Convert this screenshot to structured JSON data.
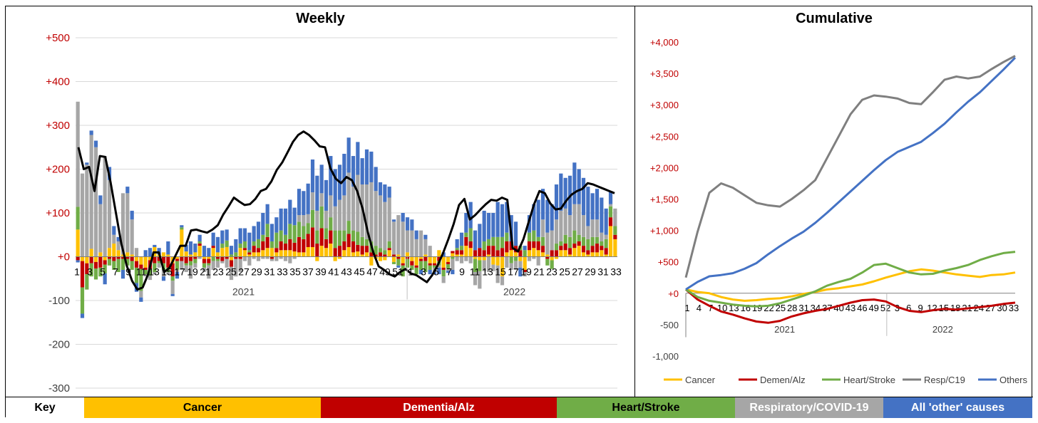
{
  "colors": {
    "cancer": "#FFC000",
    "dementia": "#C00000",
    "heart": "#70AD47",
    "resp": "#A6A6A6",
    "resp_line": "#7F7F7F",
    "others": "#4472C4",
    "axis_label": "#C00000",
    "neg_label": "#404040",
    "grid": "#D9D9D9"
  },
  "chart_data": [
    {
      "type": "bar",
      "title": "Weekly",
      "stacked": true,
      "ylim": [
        -300,
        500
      ],
      "yticks": [
        -300,
        -200,
        -100,
        0,
        100,
        200,
        300,
        400,
        500
      ],
      "ytick_labels": [
        "-300",
        "-200",
        "-100",
        "+0",
        "+100",
        "+200",
        "+300",
        "+400",
        "+500"
      ],
      "grid": true,
      "x_tick_labels": [
        "1",
        "3",
        "5",
        "7",
        "9",
        "11",
        "13",
        "15",
        "17",
        "19",
        "21",
        "23",
        "25",
        "27",
        "29",
        "31",
        "33",
        "35",
        "37",
        "39",
        "41",
        "43",
        "45",
        "47",
        "49",
        "51",
        "1",
        "3",
        "5",
        "7",
        "9",
        "11",
        "13",
        "15",
        "17",
        "19",
        "21",
        "23",
        "25",
        "27",
        "29",
        "31",
        "33"
      ],
      "year_labels": [
        "2021",
        "2022"
      ],
      "series": [
        {
          "key": "cancer",
          "values": [
            62,
            -10,
            -15,
            18,
            -12,
            10,
            -8,
            20,
            30,
            15,
            5,
            10,
            5,
            -10,
            -18,
            -25,
            -8,
            22,
            5,
            10,
            5,
            -15,
            -5,
            62,
            12,
            5,
            10,
            25,
            -5,
            -5,
            20,
            10,
            20,
            22,
            -8,
            0,
            20,
            15,
            5,
            10,
            10,
            15,
            20,
            20,
            10,
            15,
            15,
            15,
            12,
            10,
            10,
            22,
            22,
            -10,
            25,
            20,
            30,
            -10,
            -5,
            15,
            22,
            10,
            12,
            5,
            10,
            -20,
            -5,
            -10,
            -8,
            15,
            -12,
            5,
            -15,
            10,
            -10,
            -20,
            -5,
            5,
            -15,
            -15,
            15,
            -25,
            -12,
            8,
            5,
            5,
            25,
            20,
            -5,
            -8,
            -8,
            5,
            -18,
            -20,
            -45,
            10,
            15,
            10,
            -10,
            -30,
            15,
            20,
            15,
            10,
            5,
            -8,
            -5,
            15,
            15,
            5,
            20,
            25,
            10,
            5,
            10,
            10,
            15,
            5,
            70,
            40
          ]
        },
        {
          "key": "dementia",
          "values": [
            -8,
            -60,
            -25,
            -15,
            -15,
            -25,
            -10,
            -5,
            -10,
            -5,
            -5,
            -5,
            -10,
            -15,
            -10,
            -5,
            -20,
            -15,
            -10,
            -15,
            -25,
            -30,
            -5,
            -10,
            -15,
            -10,
            -5,
            5,
            -10,
            -10,
            5,
            -5,
            -10,
            -5,
            -15,
            -5,
            -5,
            5,
            5,
            15,
            10,
            20,
            25,
            -5,
            10,
            20,
            15,
            25,
            20,
            35,
            30,
            30,
            45,
            30,
            40,
            20,
            30,
            20,
            25,
            20,
            30,
            25,
            15,
            20,
            15,
            10,
            5,
            10,
            5,
            5,
            5,
            -5,
            -5,
            -5,
            -10,
            -5,
            -5,
            -10,
            -5,
            -5,
            -10,
            -5,
            -5,
            5,
            10,
            10,
            20,
            15,
            15,
            20,
            15,
            20,
            25,
            15,
            20,
            25,
            20,
            15,
            15,
            -5,
            20,
            15,
            20,
            15,
            -5,
            15,
            15,
            10,
            15,
            15,
            10,
            10,
            15,
            10,
            15,
            20,
            10,
            15,
            20,
            10,
            15
          ]
        },
        {
          "key": "heart",
          "values": [
            52,
            -60,
            -35,
            -30,
            -25,
            -20,
            -20,
            -15,
            -20,
            -30,
            -25,
            -15,
            -20,
            -35,
            -50,
            -10,
            -15,
            -20,
            -5,
            -15,
            -10,
            -10,
            -20,
            5,
            -5,
            -10,
            -10,
            5,
            -10,
            -5,
            -10,
            -5,
            10,
            15,
            5,
            10,
            10,
            15,
            5,
            10,
            20,
            15,
            30,
            15,
            35,
            25,
            20,
            35,
            40,
            35,
            30,
            25,
            40,
            30,
            50,
            25,
            30,
            40,
            35,
            25,
            30,
            25,
            30,
            20,
            15,
            25,
            20,
            10,
            10,
            15,
            -5,
            -15,
            -25,
            -20,
            -10,
            -15,
            -20,
            -25,
            -10,
            -5,
            -10,
            -15,
            -10,
            -5,
            5,
            10,
            10,
            30,
            -30,
            -25,
            20,
            15,
            20,
            30,
            25,
            20,
            -15,
            -10,
            10,
            15,
            20,
            25,
            10,
            20,
            -15,
            -20,
            15,
            10,
            20,
            25,
            30,
            15,
            20,
            25,
            20,
            15,
            10,
            20,
            25,
            20,
            10
          ]
        },
        {
          "key": "resp",
          "values": [
            240,
            190,
            210,
            260,
            250,
            110,
            230,
            155,
            20,
            20,
            140,
            135,
            80,
            20,
            -15,
            -5,
            -10,
            -5,
            -10,
            -15,
            -5,
            -30,
            -5,
            -20,
            -15,
            -30,
            -10,
            -5,
            -10,
            -30,
            -20,
            -15,
            -5,
            -20,
            -30,
            -40,
            -30,
            -10,
            -20,
            -5,
            -10,
            -5,
            -5,
            -5,
            -10,
            -5,
            -10,
            -15,
            -5,
            15,
            25,
            20,
            40,
            45,
            30,
            40,
            50,
            55,
            70,
            80,
            110,
            100,
            130,
            120,
            125,
            135,
            125,
            120,
            110,
            100,
            75,
            90,
            80,
            50,
            60,
            40,
            60,
            35,
            25,
            -10,
            -5,
            -15,
            -5,
            -25,
            -10,
            -15,
            -10,
            -15,
            -30,
            -40,
            -25,
            -35,
            -15,
            -40,
            -20,
            -25,
            -15,
            -20,
            -15,
            -10,
            -10,
            -5,
            -20,
            40,
            50,
            45,
            55,
            70,
            60,
            50,
            60,
            70,
            50,
            30,
            40,
            40,
            20,
            10,
            5,
            40,
            60
          ]
        },
        {
          "key": "others",
          "values": [
            -5,
            -10,
            5,
            10,
            15,
            20,
            -25,
            30,
            20,
            10,
            -20,
            15,
            20,
            -20,
            -10,
            15,
            20,
            5,
            15,
            -10,
            30,
            -5,
            -15,
            5,
            15,
            30,
            20,
            15,
            25,
            20,
            30,
            35,
            30,
            25,
            20,
            30,
            35,
            30,
            40,
            35,
            40,
            50,
            45,
            40,
            35,
            50,
            60,
            55,
            40,
            60,
            55,
            70,
            75,
            80,
            65,
            70,
            90,
            85,
            80,
            95,
            80,
            70,
            75,
            60,
            80,
            70,
            55,
            30,
            40,
            25,
            5,
            -5,
            20,
            30,
            25,
            20,
            -10,
            10,
            -10,
            -5,
            -15,
            10,
            -5,
            -10,
            20,
            30,
            45,
            60,
            45,
            55,
            70,
            60,
            55,
            80,
            75,
            70,
            60,
            55,
            -20,
            10,
            40,
            60,
            85,
            70,
            75,
            60,
            80,
            85,
            70,
            90,
            95,
            80,
            85,
            90,
            60,
            70,
            80,
            60,
            30
          ]
        }
      ],
      "trend": [
        250,
        200,
        205,
        150,
        230,
        228,
        170,
        100,
        30,
        -20,
        -55,
        -75,
        -70,
        -40,
        10,
        10,
        -35,
        -25,
        0,
        25,
        25,
        60,
        62,
        58,
        55,
        62,
        72,
        96,
        115,
        135,
        126,
        118,
        120,
        132,
        150,
        155,
        172,
        198,
        215,
        238,
        262,
        278,
        286,
        278,
        266,
        252,
        250,
        202,
        178,
        168,
        182,
        175,
        150,
        110,
        55,
        10,
        -22,
        -30,
        -40,
        -45,
        -35,
        -28,
        -38,
        -42,
        -50,
        -58,
        -42,
        -20,
        8,
        40,
        75,
        118,
        132,
        85,
        95,
        108,
        120,
        130,
        128,
        135,
        130,
        20,
        12,
        40,
        80,
        120,
        150,
        145,
        122,
        108,
        110,
        128,
        142,
        150,
        155,
        168,
        165,
        160,
        155,
        150,
        145
      ]
    },
    {
      "type": "line",
      "title": "Cumulative",
      "ylim": [
        -1000,
        4000
      ],
      "yticks": [
        -1000,
        -500,
        0,
        500,
        1000,
        1500,
        2000,
        2500,
        3000,
        3500,
        4000
      ],
      "ytick_labels": [
        "-1,000",
        "-500",
        "+0",
        "+500",
        "+1,000",
        "+1,500",
        "+2,000",
        "+2,500",
        "+3,000",
        "+3,500",
        "+4,000"
      ],
      "x_tick_labels": [
        "1",
        "4",
        "7",
        "10",
        "13",
        "16",
        "19",
        "22",
        "25",
        "28",
        "31",
        "34",
        "37",
        "40",
        "43",
        "46",
        "49",
        "52",
        "3",
        "6",
        "9",
        "12",
        "15",
        "18",
        "21",
        "24",
        "27",
        "30",
        "33"
      ],
      "year_labels": [
        "2021",
        "2022"
      ],
      "legend_position": "bottom",
      "series": [
        {
          "key": "cancer",
          "name": "Cancer",
          "values": [
            60,
            20,
            0,
            -60,
            -100,
            -120,
            -110,
            -90,
            -80,
            -50,
            -10,
            20,
            60,
            80,
            110,
            140,
            190,
            250,
            300,
            350,
            380,
            360,
            330,
            300,
            280,
            260,
            290,
            300,
            330
          ]
        },
        {
          "key": "dementia",
          "name": "Demen/Alz",
          "values": [
            60,
            -100,
            -200,
            -290,
            -340,
            -400,
            -450,
            -470,
            -440,
            -370,
            -320,
            -280,
            -250,
            -200,
            -150,
            -110,
            -100,
            -130,
            -220,
            -280,
            -300,
            -270,
            -250,
            -260,
            -240,
            -220,
            -200,
            -170,
            -150
          ]
        },
        {
          "key": "heart",
          "name": "Heart/Stroke",
          "values": [
            60,
            -60,
            -120,
            -150,
            -180,
            -200,
            -210,
            -200,
            -160,
            -100,
            -40,
            30,
            120,
            180,
            230,
            330,
            450,
            470,
            400,
            330,
            300,
            310,
            360,
            400,
            450,
            530,
            590,
            640,
            660
          ]
        },
        {
          "key": "resp",
          "name": "Resp/C19",
          "values": [
            250,
            980,
            1600,
            1750,
            1680,
            1560,
            1440,
            1400,
            1380,
            1500,
            1640,
            1800,
            2150,
            2500,
            2850,
            3080,
            3150,
            3130,
            3100,
            3030,
            3010,
            3200,
            3400,
            3450,
            3420,
            3450,
            3570,
            3680,
            3780
          ]
        },
        {
          "key": "others",
          "name": "Others",
          "values": [
            60,
            180,
            270,
            290,
            320,
            390,
            480,
            620,
            750,
            870,
            980,
            1120,
            1280,
            1450,
            1620,
            1790,
            1960,
            2120,
            2250,
            2330,
            2410,
            2550,
            2700,
            2880,
            3050,
            3200,
            3380,
            3560,
            3750
          ]
        }
      ]
    }
  ],
  "key_bar": {
    "label": "Key",
    "items": [
      {
        "key": "cancer",
        "label": "Cancer"
      },
      {
        "key": "dementia",
        "label": "Dementia/Alz"
      },
      {
        "key": "heart",
        "label": "Heart/Stroke"
      },
      {
        "key": "resp",
        "label": "Respiratory/COVID-19"
      },
      {
        "key": "others",
        "label": "All 'other' causes"
      }
    ]
  }
}
